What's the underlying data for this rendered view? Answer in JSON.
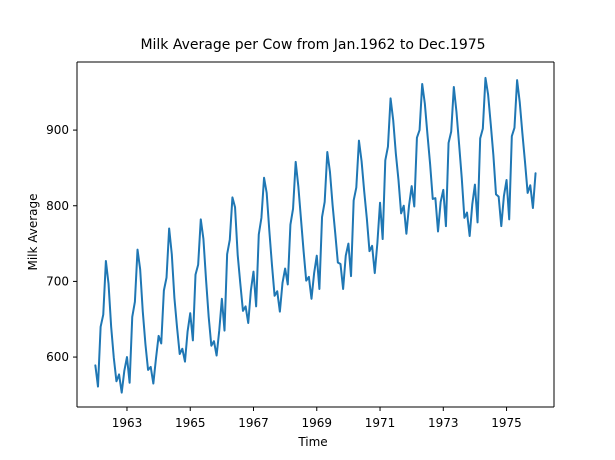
{
  "chart_data": {
    "type": "line",
    "title": "Milk Average per Cow from Jan.1962 to Dec.1975",
    "xlabel": "Time",
    "ylabel": "Milk Average",
    "xlim": [
      1961.42,
      1976.5
    ],
    "ylim": [
      534,
      990
    ],
    "x_ticks": [
      1963,
      1965,
      1967,
      1969,
      1971,
      1973,
      1975
    ],
    "y_ticks": [
      600,
      700,
      800,
      900
    ],
    "grid": false,
    "legend": "none",
    "x_start": 1962.0,
    "x_step": 0.0833333,
    "series": [
      {
        "color": "#1f77b4",
        "values": [
          589,
          561,
          640,
          656,
          727,
          697,
          640,
          599,
          568,
          577,
          553,
          582,
          600,
          566,
          653,
          673,
          742,
          716,
          660,
          617,
          583,
          587,
          565,
          598,
          628,
          618,
          688,
          705,
          770,
          736,
          678,
          639,
          604,
          611,
          594,
          634,
          658,
          622,
          709,
          722,
          782,
          756,
          702,
          653,
          615,
          621,
          602,
          635,
          677,
          635,
          736,
          755,
          811,
          798,
          735,
          697,
          661,
          667,
          645,
          688,
          713,
          667,
          762,
          784,
          837,
          817,
          767,
          722,
          681,
          687,
          660,
          698,
          717,
          696,
          775,
          796,
          858,
          826,
          783,
          740,
          701,
          706,
          677,
          711,
          734,
          690,
          785,
          805,
          871,
          845,
          801,
          764,
          725,
          723,
          690,
          734,
          750,
          707,
          807,
          824,
          886,
          859,
          819,
          783,
          740,
          747,
          711,
          751,
          804,
          756,
          860,
          878,
          942,
          913,
          869,
          834,
          790,
          800,
          763,
          800,
          826,
          799,
          890,
          900,
          961,
          935,
          894,
          855,
          809,
          810,
          766,
          805,
          821,
          773,
          883,
          898,
          957,
          924,
          881,
          837,
          784,
          791,
          760,
          802,
          828,
          778,
          889,
          902,
          969,
          947,
          908,
          867,
          815,
          812,
          773,
          813,
          834,
          782,
          892,
          903,
          966,
          937,
          896,
          858,
          817,
          827,
          797,
          843
        ]
      }
    ]
  }
}
